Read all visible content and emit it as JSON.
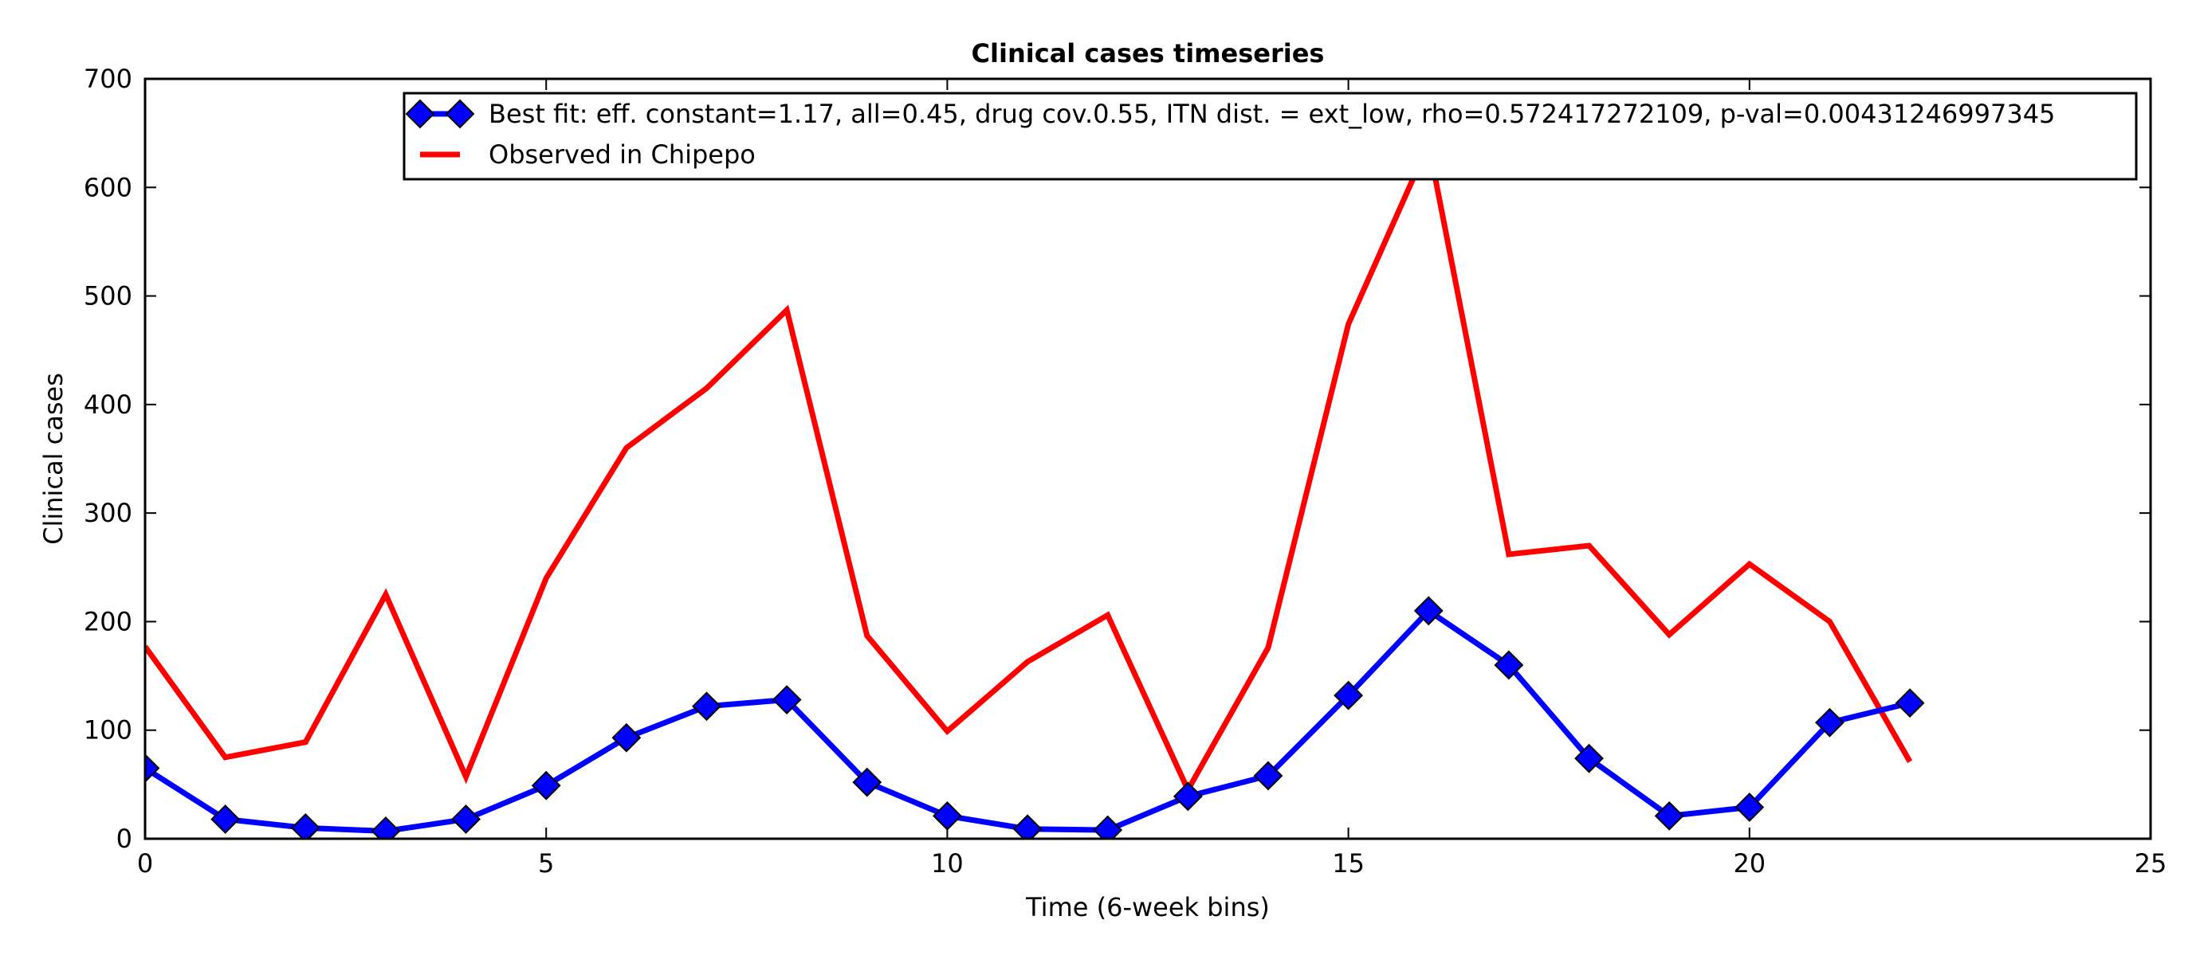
{
  "chart_data": {
    "type": "line",
    "title": "Clinical cases timeseries",
    "xlabel": "Time (6-week bins)",
    "ylabel": "Clinical cases",
    "xlim": [
      0,
      25
    ],
    "ylim": [
      0,
      700
    ],
    "xticks": [
      0,
      5,
      10,
      15,
      20,
      25
    ],
    "yticks": [
      0,
      100,
      200,
      300,
      400,
      500,
      600,
      700
    ],
    "grid": false,
    "legend_position": "top-right",
    "series": [
      {
        "name": "Best fit: eff. constant=1.17, all=0.45, drug cov.0.55, ITN dist. = ext_low, rho=0.572417272109, p-val=0.00431246997345",
        "color": "#0000ff",
        "marker": "diamond",
        "x": [
          0,
          1,
          2,
          3,
          4,
          5,
          6,
          7,
          8,
          9,
          10,
          11,
          12,
          13,
          14,
          15,
          16,
          17,
          18,
          19,
          20,
          21,
          22
        ],
        "y": [
          65,
          18,
          10,
          7,
          18,
          49,
          93,
          122,
          128,
          52,
          21,
          9,
          8,
          39,
          58,
          132,
          210,
          160,
          74,
          21,
          29,
          107,
          125
        ]
      },
      {
        "name": "Observed in Chipepo",
        "color": "#ff0000",
        "marker": "none",
        "x": [
          0,
          1,
          2,
          3,
          4,
          5,
          6,
          7,
          8,
          9,
          10,
          11,
          12,
          13,
          14,
          15,
          16,
          17,
          18,
          19,
          20,
          21,
          22
        ],
        "y": [
          177,
          75,
          89,
          225,
          57,
          240,
          360,
          415,
          487,
          187,
          99,
          163,
          206,
          45,
          176,
          474,
          640,
          262,
          270,
          188,
          253,
          200,
          71
        ]
      }
    ]
  }
}
